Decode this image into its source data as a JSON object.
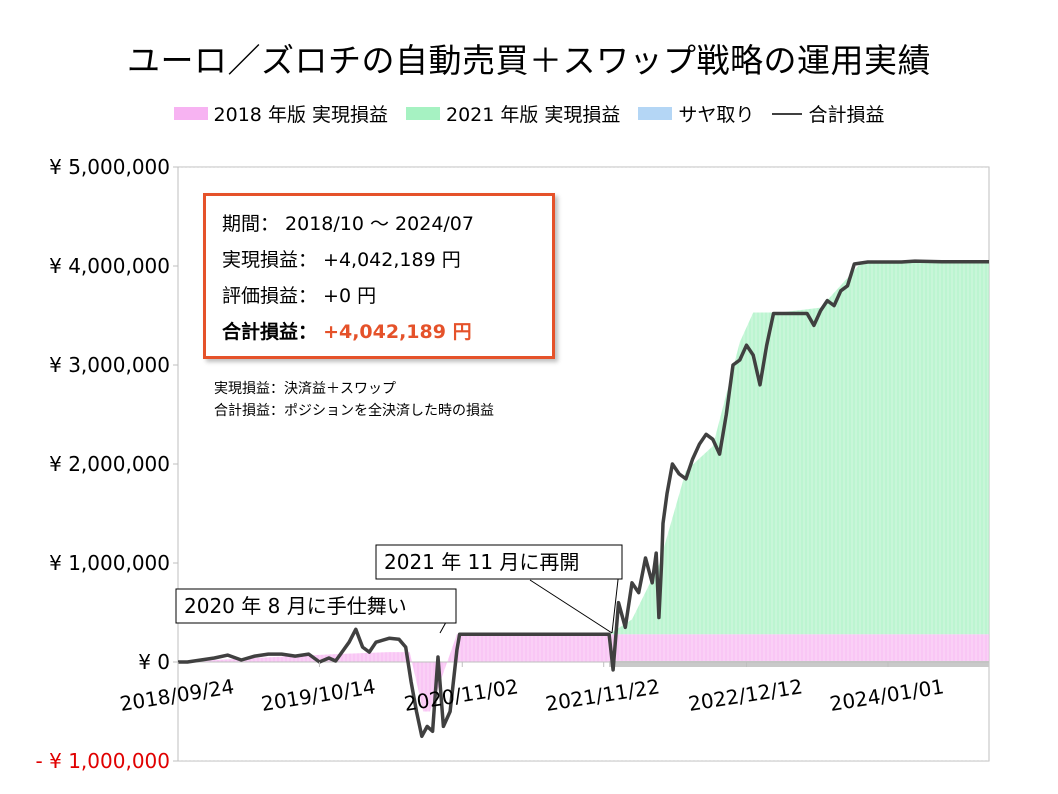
{
  "title": "ユーロ／ズロチの自動売買＋スワップ戦略の運用実績",
  "legend": [
    {
      "label": "2018 年版 実現損益",
      "color": "#f7b3f2",
      "kind": "area"
    },
    {
      "label": "2021 年版 実現損益",
      "color": "#a6f2c2",
      "kind": "area"
    },
    {
      "label": "サヤ取り",
      "color": "#b4d6f5",
      "kind": "area"
    },
    {
      "label": "合計損益",
      "color": "#404040",
      "kind": "line"
    }
  ],
  "info": {
    "period": "期間： 2018/10 ～ 2024/07",
    "realized": "実現損益： +4,042,189 円",
    "unrealized": "評価損益： +0 円",
    "total_label": "合計損益：",
    "total_value": "+4,042,189 円"
  },
  "notes": [
    "実現損益：決済益＋スワップ",
    "合計損益：ポジションを全決済した時の損益"
  ],
  "annotations": [
    {
      "text": "2020 年 8 月に手仕舞い",
      "date": "2020-08"
    },
    {
      "text": "2021 年 11 月に再開",
      "date": "2021-11"
    }
  ],
  "chart_data": {
    "type": "area",
    "y_tick_labels": [
      "¥ 5,000,000",
      "¥ 4,000,000",
      "¥ 3,000,000",
      "¥ 2,000,000",
      "¥ 1,000,000",
      "¥ 0",
      "- ¥ 1,000,000"
    ],
    "y_tick_values": [
      5000000,
      4000000,
      3000000,
      2000000,
      1000000,
      0,
      -1000000
    ],
    "ylim": [
      -1000000,
      5000000
    ],
    "x_tick_labels": [
      "2018/09/24",
      "2019/10/14",
      "2020/11/02",
      "2021/11/22",
      "2022/12/12",
      "2024/01/01"
    ],
    "x_tick_values": [
      2018.73,
      2019.78,
      2020.84,
      2021.89,
      2022.95,
      2024.0
    ],
    "xlim": [
      2018.73,
      2024.75
    ],
    "series": [
      {
        "name": "2018 年版 実現損益",
        "x": [
          2018.73,
          2019.0,
          2019.3,
          2019.6,
          2019.9,
          2020.1,
          2020.3,
          2020.45,
          2020.55,
          2020.6,
          2020.8,
          2021.0,
          2021.9,
          2022.5,
          2023.0,
          2024.0,
          2024.75
        ],
        "values": [
          0,
          20000,
          40000,
          60000,
          80000,
          90000,
          100000,
          100000,
          -500000,
          -500000,
          280000,
          280000,
          280000,
          280000,
          280000,
          280000,
          280000
        ]
      },
      {
        "name": "2021 年版 実現損益",
        "x": [
          2021.93,
          2022.1,
          2022.3,
          2022.5,
          2022.7,
          2022.9,
          2023.0,
          2023.2,
          2023.5,
          2023.8,
          2024.0,
          2024.75
        ],
        "values": [
          0,
          150000,
          700000,
          1650000,
          1900000,
          2950000,
          3250000,
          3250000,
          3300000,
          3750000,
          3760000,
          3760000
        ]
      },
      {
        "name": "合計損益",
        "x": [
          2018.73,
          2018.8,
          2018.9,
          2019.0,
          2019.1,
          2019.2,
          2019.3,
          2019.4,
          2019.5,
          2019.6,
          2019.7,
          2019.78,
          2019.85,
          2019.9,
          2020.0,
          2020.05,
          2020.1,
          2020.15,
          2020.2,
          2020.3,
          2020.37,
          2020.42,
          2020.46,
          2020.5,
          2020.54,
          2020.58,
          2020.62,
          2020.66,
          2020.7,
          2020.75,
          2020.8,
          2020.82,
          2021.0,
          2021.3,
          2021.6,
          2021.85,
          2021.93,
          2021.96,
          2022.0,
          2022.05,
          2022.1,
          2022.15,
          2022.2,
          2022.25,
          2022.28,
          2022.3,
          2022.32,
          2022.33,
          2022.36,
          2022.4,
          2022.45,
          2022.5,
          2022.55,
          2022.6,
          2022.65,
          2022.7,
          2022.75,
          2022.8,
          2022.85,
          2022.9,
          2022.95,
          2023.0,
          2023.05,
          2023.1,
          2023.15,
          2023.2,
          2023.3,
          2023.4,
          2023.45,
          2023.5,
          2023.55,
          2023.6,
          2023.65,
          2023.7,
          2023.75,
          2023.8,
          2023.85,
          2024.0,
          2024.1,
          2024.2,
          2024.4,
          2024.6,
          2024.75
        ],
        "values": [
          0,
          0,
          20000,
          40000,
          70000,
          20000,
          60000,
          80000,
          80000,
          60000,
          80000,
          0,
          40000,
          10000,
          200000,
          330000,
          150000,
          100000,
          200000,
          240000,
          230000,
          150000,
          -200000,
          -500000,
          -750000,
          -650000,
          -700000,
          50000,
          -650000,
          -500000,
          120000,
          280000,
          280000,
          280000,
          280000,
          280000,
          280000,
          -80000,
          600000,
          350000,
          800000,
          700000,
          1050000,
          800000,
          1100000,
          450000,
          1000000,
          1400000,
          1700000,
          2000000,
          1900000,
          1850000,
          2050000,
          2200000,
          2300000,
          2250000,
          2100000,
          2500000,
          3000000,
          3050000,
          3200000,
          3100000,
          2800000,
          3200000,
          3520000,
          3520000,
          3520000,
          3520000,
          3400000,
          3550000,
          3650000,
          3600000,
          3750000,
          3800000,
          4020000,
          4030000,
          4040000,
          4040000,
          4040000,
          4050000,
          4042189,
          4042189,
          4042189
        ]
      }
    ],
    "grid": false,
    "legend_position": "top"
  }
}
